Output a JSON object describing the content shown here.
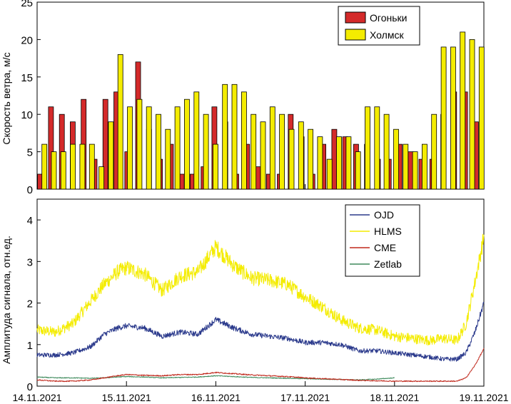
{
  "chart_data": [
    {
      "type": "bar",
      "ylabel": "Скорость ветра, м/с",
      "ylim": [
        0,
        25
      ],
      "yticks": [
        0,
        5,
        10,
        15,
        20,
        25
      ],
      "legend_position": "top-right",
      "series": [
        {
          "name": "Огоньки",
          "color": "#d42a2a",
          "values": [
            2,
            11,
            10,
            9,
            12,
            4,
            12,
            13,
            5,
            17,
            8,
            4,
            6,
            2,
            2,
            3,
            11,
            9,
            2,
            6,
            3,
            2,
            2,
            10,
            7,
            2,
            6,
            8,
            7,
            6,
            6,
            4,
            4,
            6,
            5,
            4,
            4,
            10,
            13,
            13,
            9
          ]
        },
        {
          "name": "Холмск",
          "color": "#f4ec00",
          "values": [
            6,
            5,
            5,
            6,
            6,
            6,
            3,
            9,
            18,
            11,
            12,
            11,
            10,
            8,
            11,
            12,
            13,
            10,
            6,
            14,
            14,
            13,
            10,
            9,
            11,
            10,
            8,
            9,
            8,
            7,
            4,
            7,
            7,
            5,
            11,
            11,
            10,
            8,
            6,
            5,
            6,
            10,
            19,
            19,
            21,
            20,
            19
          ]
        }
      ]
    },
    {
      "type": "line",
      "ylabel": "Амплитуда сигнала, отн.ед.",
      "ylim": [
        0,
        4.5
      ],
      "yticks": [
        0,
        1,
        2,
        3,
        4
      ],
      "xlabels": [
        "14.11.2021",
        "15.11.2021",
        "16.11.2021",
        "17.11.2021",
        "18.11.2021",
        "19.11.2021"
      ],
      "legend_position": "top-right",
      "series": [
        {
          "name": "OJD",
          "color": "#2b3a8c",
          "x": [
            14.0,
            14.2,
            14.4,
            14.6,
            14.75,
            14.9,
            15.0,
            15.2,
            15.4,
            15.6,
            15.8,
            16.0,
            16.2,
            16.4,
            16.6,
            16.8,
            17.0,
            17.2,
            17.4,
            17.6,
            17.8,
            18.0,
            18.2,
            18.4,
            18.55,
            18.7,
            18.8,
            18.9,
            19.0
          ],
          "values": [
            0.75,
            0.75,
            0.8,
            0.95,
            1.25,
            1.4,
            1.45,
            1.4,
            1.2,
            1.3,
            1.25,
            1.6,
            1.4,
            1.25,
            1.2,
            1.15,
            1.05,
            1.05,
            1.0,
            0.85,
            0.85,
            0.8,
            0.75,
            0.7,
            0.65,
            0.65,
            0.8,
            1.3,
            2.0
          ]
        },
        {
          "name": "HLMS",
          "color": "#f4ec00",
          "x": [
            14.0,
            14.2,
            14.4,
            14.6,
            14.75,
            14.9,
            15.0,
            15.2,
            15.4,
            15.6,
            15.8,
            16.0,
            16.2,
            16.4,
            16.6,
            16.8,
            17.0,
            17.2,
            17.4,
            17.6,
            17.8,
            18.0,
            18.2,
            18.4,
            18.55,
            18.7,
            18.8,
            18.9,
            19.0
          ],
          "values": [
            1.35,
            1.3,
            1.5,
            2.05,
            2.45,
            2.75,
            2.85,
            2.7,
            2.3,
            2.65,
            2.75,
            3.35,
            2.9,
            2.6,
            2.55,
            2.45,
            2.15,
            1.9,
            1.6,
            1.4,
            1.35,
            1.2,
            1.15,
            1.1,
            1.15,
            1.1,
            1.5,
            2.5,
            3.6
          ]
        },
        {
          "name": "CME",
          "color": "#c0281c",
          "x": [
            14.0,
            14.2,
            14.4,
            14.6,
            14.75,
            14.9,
            15.0,
            15.2,
            15.4,
            15.6,
            15.8,
            16.0,
            16.2,
            16.4,
            16.6,
            16.8,
            17.0,
            17.2,
            17.4,
            17.6,
            17.8,
            18.0,
            18.2,
            18.4,
            18.55,
            18.7,
            18.8,
            18.9,
            19.0
          ],
          "values": [
            0.15,
            0.12,
            0.12,
            0.15,
            0.2,
            0.25,
            0.28,
            0.26,
            0.25,
            0.28,
            0.28,
            0.33,
            0.3,
            0.27,
            0.25,
            0.23,
            0.2,
            0.18,
            0.16,
            0.14,
            0.13,
            0.12,
            0.12,
            0.12,
            0.12,
            0.12,
            0.2,
            0.5,
            0.9
          ]
        },
        {
          "name": "Zetlab",
          "color": "#3e8a5c",
          "x": [
            14.0,
            14.2,
            14.4,
            14.6,
            14.75,
            14.9,
            15.0,
            15.2,
            15.4,
            15.6,
            15.8,
            16.0,
            16.2,
            16.4,
            16.6,
            16.8,
            17.0,
            17.2,
            17.4,
            17.6,
            17.8,
            18.0
          ],
          "values": [
            0.22,
            0.2,
            0.2,
            0.19,
            0.2,
            0.22,
            0.23,
            0.22,
            0.2,
            0.21,
            0.22,
            0.25,
            0.23,
            0.21,
            0.2,
            0.19,
            0.18,
            0.17,
            0.16,
            0.15,
            0.17,
            0.2
          ]
        }
      ]
    }
  ]
}
